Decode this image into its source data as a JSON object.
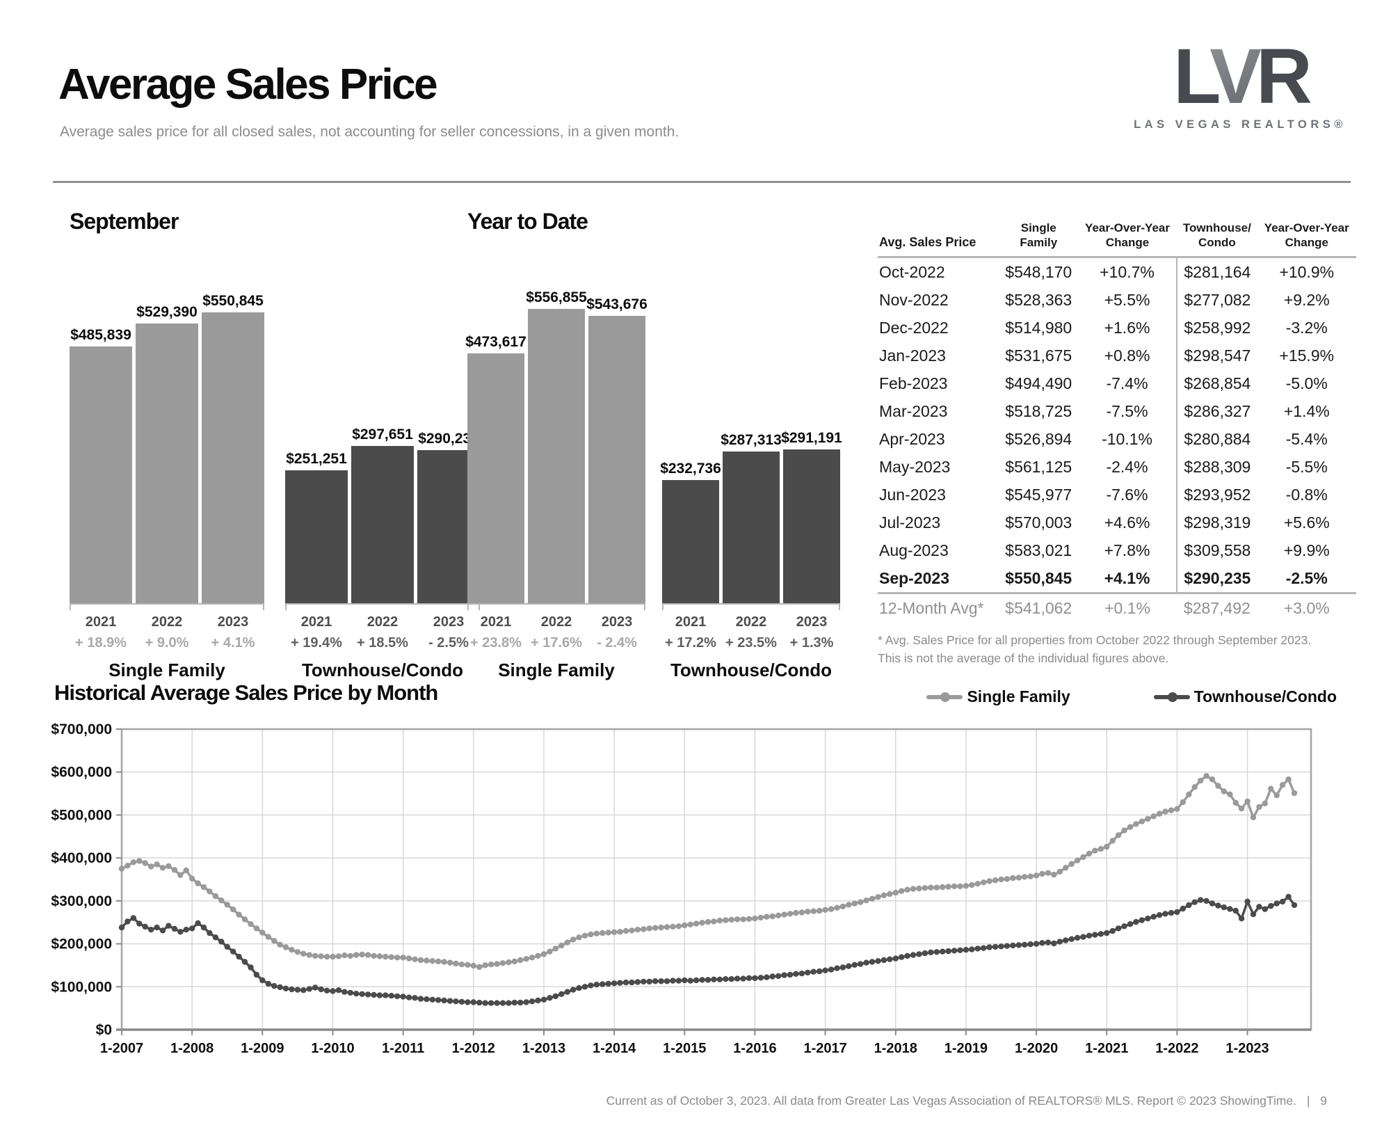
{
  "header": {
    "title": "Average Sales Price",
    "subtitle": "Average sales price for all closed sales, not accounting for seller concessions, in a given month."
  },
  "logo": {
    "l": "L",
    "v": "V",
    "r": "R",
    "subtitle": "LAS VEGAS REALTORS®"
  },
  "colors": {
    "single_family": "#9a9a9a",
    "townhouse": "#4b4b4b",
    "pct_light": "#a8a8a8",
    "pct_dark": "#5f5f5f",
    "grid": "#d8d8d8",
    "chart_border": "#a5a5a5",
    "axis": "#8a8a8a"
  },
  "table": {
    "headers": [
      "Avg. Sales Price",
      "Single\nFamily",
      "Year-Over-Year\nChange",
      "Townhouse/\nCondo",
      "Year-Over-Year\nChange"
    ],
    "rows": [
      {
        "month": "Oct-2022",
        "sf": "$548,170",
        "sf_chg": "+10.7%",
        "th": "$281,164",
        "th_chg": "+10.9%",
        "bold": false
      },
      {
        "month": "Nov-2022",
        "sf": "$528,363",
        "sf_chg": "+5.5%",
        "th": "$277,082",
        "th_chg": "+9.2%",
        "bold": false
      },
      {
        "month": "Dec-2022",
        "sf": "$514,980",
        "sf_chg": "+1.6%",
        "th": "$258,992",
        "th_chg": "-3.2%",
        "bold": false
      },
      {
        "month": "Jan-2023",
        "sf": "$531,675",
        "sf_chg": "+0.8%",
        "th": "$298,547",
        "th_chg": "+15.9%",
        "bold": false
      },
      {
        "month": "Feb-2023",
        "sf": "$494,490",
        "sf_chg": "-7.4%",
        "th": "$268,854",
        "th_chg": "-5.0%",
        "bold": false
      },
      {
        "month": "Mar-2023",
        "sf": "$518,725",
        "sf_chg": "-7.5%",
        "th": "$286,327",
        "th_chg": "+1.4%",
        "bold": false
      },
      {
        "month": "Apr-2023",
        "sf": "$526,894",
        "sf_chg": "-10.1%",
        "th": "$280,884",
        "th_chg": "-5.4%",
        "bold": false
      },
      {
        "month": "May-2023",
        "sf": "$561,125",
        "sf_chg": "-2.4%",
        "th": "$288,309",
        "th_chg": "-5.5%",
        "bold": false
      },
      {
        "month": "Jun-2023",
        "sf": "$545,977",
        "sf_chg": "-7.6%",
        "th": "$293,952",
        "th_chg": "-0.8%",
        "bold": false
      },
      {
        "month": "Jul-2023",
        "sf": "$570,003",
        "sf_chg": "+4.6%",
        "th": "$298,319",
        "th_chg": "+5.6%",
        "bold": false
      },
      {
        "month": "Aug-2023",
        "sf": "$583,021",
        "sf_chg": "+7.8%",
        "th": "$309,558",
        "th_chg": "+9.9%",
        "bold": false
      },
      {
        "month": "Sep-2023",
        "sf": "$550,845",
        "sf_chg": "+4.1%",
        "th": "$290,235",
        "th_chg": "-2.5%",
        "bold": true
      }
    ],
    "avg_row": {
      "month": "12-Month Avg*",
      "sf": "$541,062",
      "sf_chg": "+0.1%",
      "th": "$287,492",
      "th_chg": "+3.0%"
    },
    "footnote": "* Avg. Sales Price for all properties from October 2022 through September 2023. This is not the average of the individual figures above."
  },
  "chart_data": [
    {
      "type": "bar",
      "title": "September",
      "ylim": [
        0,
        560000
      ],
      "groups": [
        {
          "name": "Single Family",
          "color": "#9a9a9a",
          "pct_color": "#a8a8a8",
          "categories": [
            "2021",
            "2022",
            "2023"
          ],
          "values": [
            485839,
            529390,
            550845
          ],
          "labels": [
            "$485,839",
            "$529,390",
            "$550,845"
          ],
          "changes": [
            "+ 18.9%",
            "+ 9.0%",
            "+ 4.1%"
          ]
        },
        {
          "name": "Townhouse/Condo",
          "color": "#4b4b4b",
          "pct_color": "#5f5f5f",
          "categories": [
            "2021",
            "2022",
            "2023"
          ],
          "values": [
            251251,
            297651,
            290235
          ],
          "labels": [
            "$251,251",
            "$297,651",
            "$290,235"
          ],
          "changes": [
            "+ 19.4%",
            "+ 18.5%",
            "- 2.5%"
          ]
        }
      ]
    },
    {
      "type": "bar",
      "title": "Year to Date",
      "ylim": [
        0,
        560000
      ],
      "groups": [
        {
          "name": "Single Family",
          "color": "#9a9a9a",
          "pct_color": "#a8a8a8",
          "categories": [
            "2021",
            "2022",
            "2023"
          ],
          "values": [
            473617,
            556855,
            543676
          ],
          "labels": [
            "$473,617",
            "$556,855",
            "$543,676"
          ],
          "changes": [
            "+ 23.8%",
            "+ 17.6%",
            "- 2.4%"
          ]
        },
        {
          "name": "Townhouse/Condo",
          "color": "#4b4b4b",
          "pct_color": "#5f5f5f",
          "categories": [
            "2021",
            "2022",
            "2023"
          ],
          "values": [
            232736,
            287313,
            291191
          ],
          "labels": [
            "$232,736",
            "$287,313",
            "$291,191"
          ],
          "changes": [
            "+ 17.2%",
            "+ 23.5%",
            "+ 1.3%"
          ]
        }
      ]
    },
    {
      "type": "line",
      "title": "Historical Average Sales Price by Month",
      "x_start": "2007-01",
      "x_interval": "month",
      "xtick_labels": [
        "1-2007",
        "1-2008",
        "1-2009",
        "1-2010",
        "1-2011",
        "1-2012",
        "1-2013",
        "1-2014",
        "1-2015",
        "1-2016",
        "1-2017",
        "1-2018",
        "1-2019",
        "1-2020",
        "1-2021",
        "1-2022",
        "1-2023"
      ],
      "ylim": [
        0,
        700000
      ],
      "ytick_step": 100000,
      "ytick_labels": [
        "$0",
        "$100,000",
        "$200,000",
        "$300,000",
        "$400,000",
        "$500,000",
        "$600,000",
        "$700,000"
      ],
      "grid": true,
      "legend_position": "top-right",
      "series": [
        {
          "name": "Single Family",
          "color": "#9a9a9a",
          "values": [
            375000,
            382000,
            390000,
            393000,
            388000,
            380000,
            385000,
            377000,
            381000,
            372000,
            360000,
            371000,
            352000,
            341000,
            332000,
            322000,
            311000,
            301000,
            291000,
            280000,
            268000,
            257000,
            246000,
            236000,
            226000,
            216000,
            207000,
            198000,
            192000,
            186000,
            181000,
            177000,
            174000,
            172000,
            171000,
            170000,
            170000,
            171000,
            173000,
            172000,
            174000,
            175000,
            174000,
            172000,
            171000,
            170000,
            169000,
            168000,
            168000,
            166000,
            164000,
            162000,
            161000,
            160000,
            159000,
            158000,
            156000,
            154000,
            152000,
            151000,
            149000,
            146000,
            150000,
            152000,
            153000,
            155000,
            157000,
            159000,
            162000,
            165000,
            168000,
            172000,
            176000,
            182000,
            189000,
            196000,
            203000,
            210000,
            215000,
            219000,
            222000,
            224000,
            225000,
            226000,
            227000,
            228000,
            230000,
            231000,
            233000,
            234000,
            236000,
            237000,
            238000,
            239000,
            240000,
            241000,
            243000,
            245000,
            247000,
            249000,
            251000,
            252000,
            254000,
            255000,
            256000,
            257000,
            257000,
            258000,
            259000,
            261000,
            263000,
            264000,
            266000,
            268000,
            270000,
            272000,
            273000,
            275000,
            276000,
            277000,
            279000,
            281000,
            284000,
            287000,
            291000,
            294000,
            297000,
            301000,
            305000,
            309000,
            313000,
            316000,
            319000,
            323000,
            326000,
            328000,
            329000,
            330000,
            331000,
            331000,
            332000,
            333000,
            334000,
            334000,
            335000,
            337000,
            340000,
            343000,
            346000,
            348000,
            350000,
            351000,
            353000,
            354000,
            356000,
            357000,
            359000,
            363000,
            365000,
            361000,
            368000,
            377000,
            386000,
            394000,
            402000,
            410000,
            417000,
            421000,
            426000,
            440000,
            453000,
            464000,
            472000,
            479000,
            485000,
            491000,
            497000,
            503000,
            508000,
            511000,
            514000,
            530000,
            548000,
            565000,
            580000,
            591000,
            583000,
            568000,
            555000,
            548170,
            528363,
            514980,
            531675,
            494490,
            518725,
            526894,
            561125,
            545977,
            570003,
            583021,
            550845
          ]
        },
        {
          "name": "Townhouse/Condo",
          "color": "#4b4b4b",
          "values": [
            238000,
            252000,
            260000,
            247000,
            240000,
            233000,
            238000,
            231000,
            242000,
            235000,
            228000,
            233000,
            236000,
            248000,
            238000,
            225000,
            215000,
            205000,
            193000,
            182000,
            170000,
            158000,
            145000,
            128000,
            115000,
            107000,
            102000,
            99000,
            96000,
            94000,
            93000,
            92000,
            95000,
            98000,
            94000,
            91000,
            90000,
            92000,
            88000,
            86000,
            84000,
            83000,
            82000,
            81000,
            80000,
            80000,
            79000,
            78000,
            77000,
            75000,
            74000,
            72000,
            71000,
            70000,
            69000,
            68000,
            67000,
            66000,
            65000,
            64000,
            64000,
            63000,
            62000,
            62000,
            62000,
            62000,
            62000,
            63000,
            63000,
            64000,
            66000,
            68000,
            70000,
            74000,
            78000,
            83000,
            88000,
            93000,
            97000,
            100000,
            103000,
            105000,
            106000,
            107000,
            108000,
            109000,
            110000,
            110000,
            111000,
            112000,
            112000,
            113000,
            113000,
            113000,
            114000,
            114000,
            115000,
            114000,
            115000,
            116000,
            116000,
            117000,
            117000,
            118000,
            118000,
            119000,
            119000,
            120000,
            120000,
            121000,
            122000,
            124000,
            125000,
            127000,
            128000,
            130000,
            131000,
            133000,
            135000,
            136000,
            138000,
            140000,
            143000,
            145000,
            148000,
            151000,
            153000,
            156000,
            158000,
            160000,
            162000,
            164000,
            166000,
            169000,
            172000,
            174000,
            176000,
            178000,
            180000,
            181000,
            182000,
            183000,
            184000,
            185000,
            186000,
            187000,
            189000,
            190000,
            192000,
            193000,
            194000,
            195000,
            196000,
            197000,
            198000,
            199000,
            200000,
            202000,
            203000,
            201000,
            205000,
            208000,
            211000,
            214000,
            216000,
            219000,
            221000,
            223000,
            225000,
            230000,
            236000,
            241000,
            246000,
            251000,
            255000,
            259000,
            263000,
            267000,
            270000,
            272000,
            274000,
            282000,
            290000,
            297000,
            302000,
            300000,
            294000,
            289000,
            285000,
            281164,
            277082,
            258992,
            298547,
            268854,
            286327,
            280884,
            288309,
            293952,
            298319,
            309558,
            290235
          ]
        }
      ]
    }
  ],
  "footer": {
    "text": "Current as of October 3, 2023. All data from Greater Las Vegas Association of REALTORS® MLS. Report © 2023 ShowingTime.",
    "sep": "|",
    "page": "9"
  }
}
